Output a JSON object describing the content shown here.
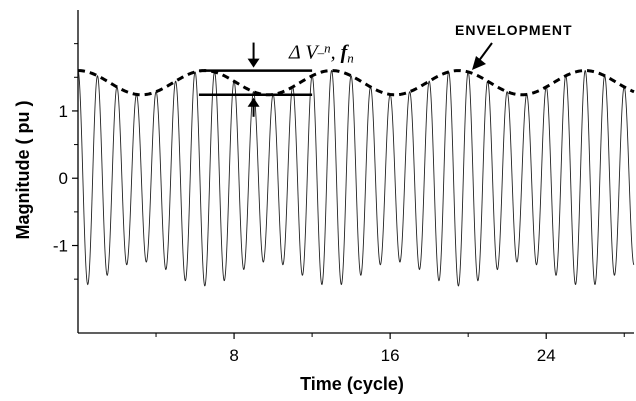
{
  "chart_data": {
    "type": "line",
    "title": "",
    "xlabel": "Time (cycle)",
    "ylabel": "Magnitude ( pu )",
    "xlim": [
      0,
      28.5
    ],
    "ylim": [
      -2.3,
      2.5
    ],
    "xticks": [
      8,
      16,
      24
    ],
    "xtick_labels": [
      "8",
      "16",
      "24"
    ],
    "yticks": [
      -1,
      0,
      1
    ],
    "ytick_labels": [
      "-1",
      "0",
      "1"
    ],
    "grid": false,
    "series": [
      {
        "style": "thin-solid",
        "description_kind": "waveform",
        "carrier_cycles_per_time_unit": 1,
        "amplitude_mean": 1.42,
        "amplitude_modulation": 0.18,
        "modulation_period": 6.5,
        "phase_offset": 0
      },
      {
        "name": "ENVELOPMENT",
        "style": "dashed-bold",
        "description_kind": "envelope",
        "amplitude_mean": 1.42,
        "amplitude_modulation": 0.18,
        "modulation_period": 6.5
      }
    ],
    "annotations": {
      "envelope_label": "ENVELOPMENT",
      "delta_prefix": "Δ",
      "delta_v": "V",
      "delta_sub": "_n",
      "delta_sep": ", ",
      "delta_f": "f",
      "delta_f_sub": "n",
      "upper_bar_y": 1.6,
      "lower_bar_y": 1.24,
      "bar_x_start": 6.2,
      "bar_x_end": 12.0,
      "arrow_x": 9.0
    }
  }
}
